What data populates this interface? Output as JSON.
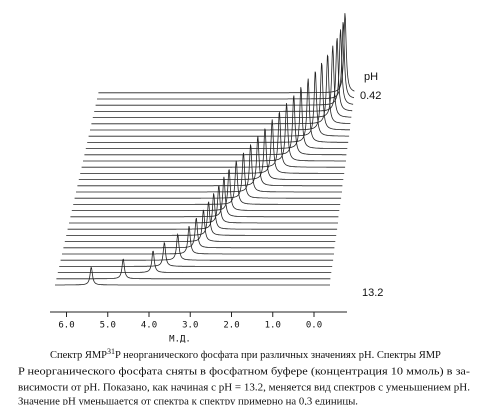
{
  "chart_data": {
    "type": "waterfall",
    "xlabel": "М.Д.",
    "xlim": [
      6.4,
      -0.8
    ],
    "xticks": [
      {
        "value": 6,
        "label": "6.0"
      },
      {
        "value": 5,
        "label": "5.0"
      },
      {
        "value": 4,
        "label": "4.0"
      },
      {
        "value": 3,
        "label": "3.0"
      },
      {
        "value": 2,
        "label": "2.0"
      },
      {
        "value": 1,
        "label": "1.0"
      },
      {
        "value": 0,
        "label": "0.0"
      }
    ],
    "peaks": [
      5.4,
      4.65,
      3.95,
      3.7,
      3.4,
      3.15,
      3.0,
      2.85,
      2.75,
      2.65,
      2.55,
      2.45,
      2.35,
      2.2,
      2.05,
      1.9,
      1.75,
      1.6,
      1.45,
      1.3,
      1.15,
      1.0,
      0.85,
      0.7,
      0.55,
      0.42,
      0.3,
      0.2,
      0.12,
      0.06,
      0.02,
      0.0
    ],
    "ph_label": "pH",
    "ph_top": "0.42",
    "ph_bottom": "13.2"
  },
  "caption": {
    "line1_a": "Спектр ЯМР",
    "line1_sup": "31",
    "line1_b": "P неорганического фосфата при различных значениях pH. Спектры ЯМР",
    "line2": "P   неорганического фосфата сняты в фосфатном буфере (концентрация 10 ммоль) в за-",
    "line3": "висимости от pH. Показано, как начиная с pH = 13.2, меняется вид спектров с уменьшением pH.",
    "line4": "Значение pH уменьшается от спектра к спектру примерно на 0,3 единицы."
  }
}
